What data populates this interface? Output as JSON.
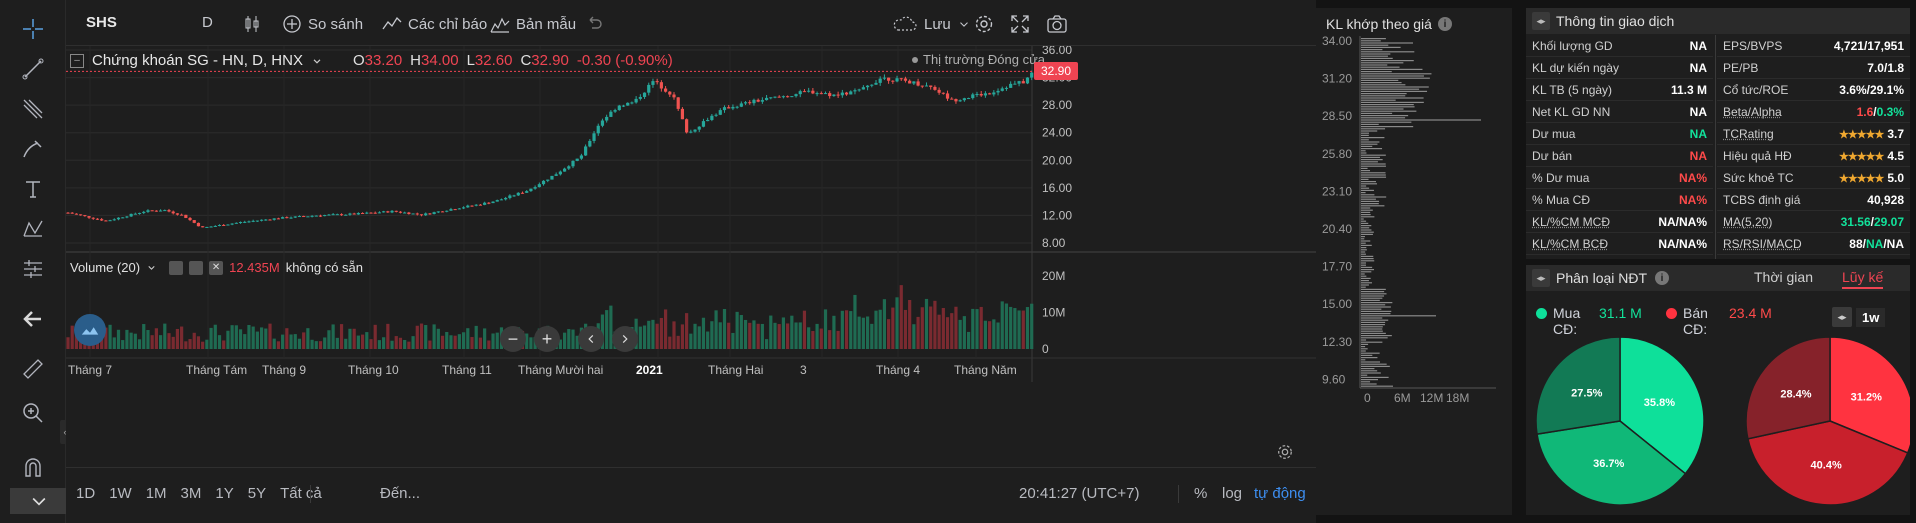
{
  "toolbar": {
    "tools": [
      "crosshair-icon",
      "trend-line-icon",
      "fib-icon",
      "brush-icon",
      "text-icon",
      "pattern-icon",
      "measure-icon",
      "back-arrow-icon",
      "ruler-icon",
      "zoom-icon",
      "magnet-icon"
    ]
  },
  "header": {
    "symbol": "SHS",
    "interval": "D",
    "compare_label": "So sánh",
    "indicators_label": "Các chỉ báo",
    "templates_label": "Bản mẫu",
    "save_label": "Lưu"
  },
  "legend": {
    "name": "Chứng khoán SG - HN, D, HNX",
    "o_label": "O",
    "o": "33.20",
    "h_label": "H",
    "h": "34.00",
    "l_label": "L",
    "l": "32.60",
    "c_label": "C",
    "c": "32.90",
    "change": "-0.30 (-0.90%)",
    "market_status": "Thị trường Đóng cửa",
    "last_price": "32.90"
  },
  "volume_legend": {
    "name": "Volume (20)",
    "value": "12.435M",
    "note": "không có sẵn"
  },
  "price_axis": [
    "36.00",
    "32.00",
    "28.00",
    "24.00",
    "20.00",
    "16.00",
    "12.00",
    "8.00"
  ],
  "volume_axis": [
    "20M",
    "10M",
    "0"
  ],
  "time_axis": [
    "Tháng 7",
    "Tháng Tám",
    "Tháng 9",
    "Tháng 10",
    "Tháng 11",
    "Tháng Mười hai",
    "2021",
    "Tháng Hai",
    "3",
    "Tháng 4",
    "Tháng Năm"
  ],
  "bottom_bar": {
    "ranges": [
      "1D",
      "1W",
      "1M",
      "3M",
      "1Y",
      "5Y",
      "Tất cả"
    ],
    "goto": "Đến...",
    "clock": "20:41:27 (UTC+7)",
    "percent": "%",
    "log": "log",
    "auto": "tự động"
  },
  "volume_profile": {
    "title": "KL khớp theo giá",
    "price_ticks": [
      "34.00",
      "31.20",
      "28.50",
      "25.80",
      "23.10",
      "20.40",
      "17.70",
      "15.00",
      "12.30",
      "9.60"
    ],
    "volume_ticks": [
      "0",
      "6M",
      "12M",
      "18M"
    ]
  },
  "trade_info": {
    "title": "Thông tin giao dịch",
    "left": [
      {
        "label": "Khối lượng GD",
        "value": "NA",
        "color": "white"
      },
      {
        "label": "KL dự kiến ngày",
        "value": "NA",
        "color": "white"
      },
      {
        "label": "KL TB (5 ngày)",
        "value": "11.3 M",
        "color": "white"
      },
      {
        "label": "Net KL GD NN",
        "value": "NA",
        "color": "white"
      },
      {
        "label": "Dư mua",
        "value": "NA",
        "color": "green"
      },
      {
        "label": "Dư bán",
        "value": "NA",
        "color": "red"
      },
      {
        "label": "% Dư mua",
        "value": "NA%",
        "color": "red"
      },
      {
        "label": "% Mua CĐ",
        "value": "NA%",
        "color": "red"
      },
      {
        "label": "KL/%CM MCĐ",
        "value": "NA/NA%",
        "color": "white"
      },
      {
        "label": "KL/%CM BCĐ",
        "value": "NA/NA%",
        "color": "white"
      }
    ],
    "right": [
      {
        "label": "EPS/BVPS",
        "value": "4,721/17,951"
      },
      {
        "label": "PE/PB",
        "value": "7.0/1.8"
      },
      {
        "label": "Cổ tức/ROE",
        "value": "3.6%/29.1%"
      },
      {
        "label": "Beta/Alpha",
        "value_a": "1.6",
        "value_b": "0.3%"
      },
      {
        "label": "TCRating",
        "stars": "★★★★★",
        "value": "3.7"
      },
      {
        "label": "Hiệu quả HĐ",
        "stars": "★★★★★",
        "value": "4.5"
      },
      {
        "label": "Sức khoẻ TC",
        "stars": "★★★★★",
        "value": "5.0"
      },
      {
        "label": "TCBS định giá",
        "value": "40,928"
      },
      {
        "label": "MA(5,20)",
        "value_a": "31.56",
        "value_b": "29.07"
      },
      {
        "label": "RS/RSI/MACD",
        "value_a": "88",
        "value_b": "NA",
        "value_c": "NA"
      }
    ]
  },
  "investor": {
    "title": "Phân loại NĐT",
    "tab_time": "Thời gian",
    "tab_cumulative": "Lũy kế",
    "buy_label": "Mua CĐ:",
    "buy_value": "31.1 M",
    "sell_label": "Bán CĐ:",
    "sell_value": "23.4 M",
    "period": "1w",
    "buy_pie": [
      {
        "value": 35.8,
        "label": "35.8%",
        "color": "#0ee09a"
      },
      {
        "value": 36.7,
        "label": "36.7%",
        "color": "#10b878"
      },
      {
        "value": 27.5,
        "label": "27.5%",
        "color": "#127a55"
      }
    ],
    "sell_pie": [
      {
        "value": 31.2,
        "label": "31.2%",
        "color": "#ff3340"
      },
      {
        "value": 40.4,
        "label": "40.4%",
        "color": "#c8202c"
      },
      {
        "value": 28.4,
        "label": "28.4%",
        "color": "#86222a"
      }
    ]
  },
  "colors": {
    "up": "#26a69a",
    "down": "#ef5350",
    "vol_up": "#1f6b52",
    "vol_down": "#7a2a30"
  }
}
